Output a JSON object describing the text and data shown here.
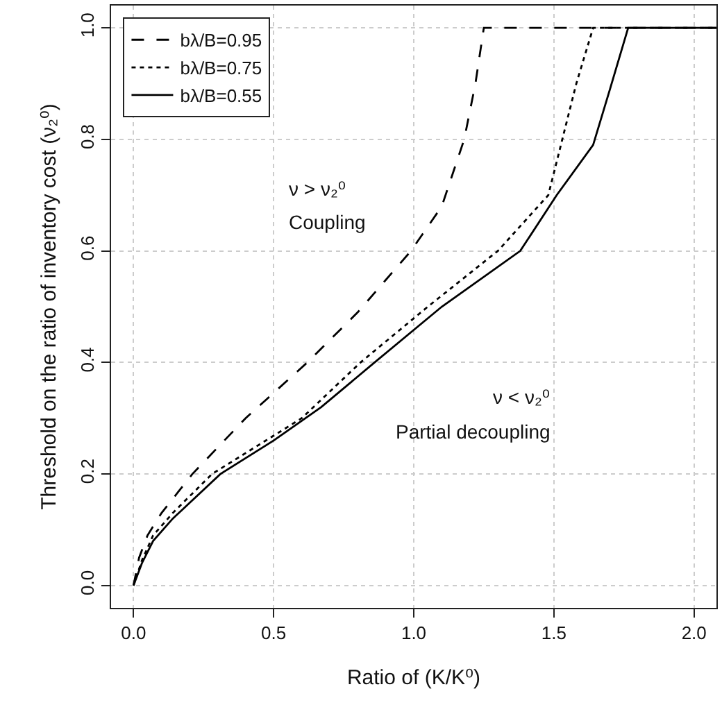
{
  "chart_data": {
    "type": "line",
    "xlabel": "Ratio of (K/K⁰)",
    "ylabel": "Threshold on the ratio of inventory cost (ν₂⁰)",
    "xlim": [
      -0.08,
      2.08
    ],
    "ylim": [
      -0.04,
      1.04
    ],
    "xticks": [
      {
        "value": 0,
        "label": "0.0"
      },
      {
        "value": 0.5,
        "label": "0.5"
      },
      {
        "value": 1,
        "label": "1.0"
      },
      {
        "value": 1.5,
        "label": "1.5"
      },
      {
        "value": 2,
        "label": "2.0"
      }
    ],
    "yticks": [
      {
        "value": 0,
        "label": "0.0"
      },
      {
        "value": 0.2,
        "label": "0.2"
      },
      {
        "value": 0.4,
        "label": "0.4"
      },
      {
        "value": 0.6,
        "label": "0.6"
      },
      {
        "value": 0.8,
        "label": "0.8"
      },
      {
        "value": 1,
        "label": "1.0"
      }
    ],
    "grid": true,
    "legend": "top left",
    "marker": "none",
    "series": [
      {
        "name": "bλ/B=0.95",
        "color": "#000000",
        "line_style": "dashed",
        "x": [
          0,
          0.02,
          0.05,
          0.1,
          0.21,
          0.4,
          0.62,
          0.8,
          0.99,
          1.1,
          1.18,
          1.22,
          1.25,
          2.08
        ],
        "values": [
          0,
          0.05,
          0.09,
          0.13,
          0.2,
          0.3,
          0.4,
          0.49,
          0.6,
          0.68,
          0.8,
          0.9,
          1.0,
          1.0
        ]
      },
      {
        "name": "bλ/B=0.75",
        "color": "#000000",
        "line_style": "dotted",
        "x": [
          0,
          0.03,
          0.07,
          0.14,
          0.28,
          0.6,
          0.81,
          1.05,
          1.3,
          1.48,
          1.53,
          1.58,
          1.64,
          2.08
        ],
        "values": [
          0,
          0.045,
          0.09,
          0.13,
          0.2,
          0.3,
          0.4,
          0.5,
          0.6,
          0.7,
          0.8,
          0.9,
          1.0,
          1.0
        ]
      },
      {
        "name": "bλ/B=0.55",
        "color": "#000000",
        "line_style": "solid",
        "x": [
          0,
          0.03,
          0.07,
          0.14,
          0.31,
          0.5,
          0.67,
          0.86,
          1.1,
          1.38,
          1.51,
          1.64,
          1.7,
          1.765,
          2.08
        ],
        "values": [
          0,
          0.04,
          0.08,
          0.12,
          0.2,
          0.26,
          0.32,
          0.4,
          0.5,
          0.6,
          0.7,
          0.79,
          0.89,
          1.0,
          1.0
        ]
      }
    ],
    "annotations": [
      "ν > ν₂⁰",
      "Coupling",
      "ν < ν₂⁰",
      "Partial decoupling"
    ]
  }
}
